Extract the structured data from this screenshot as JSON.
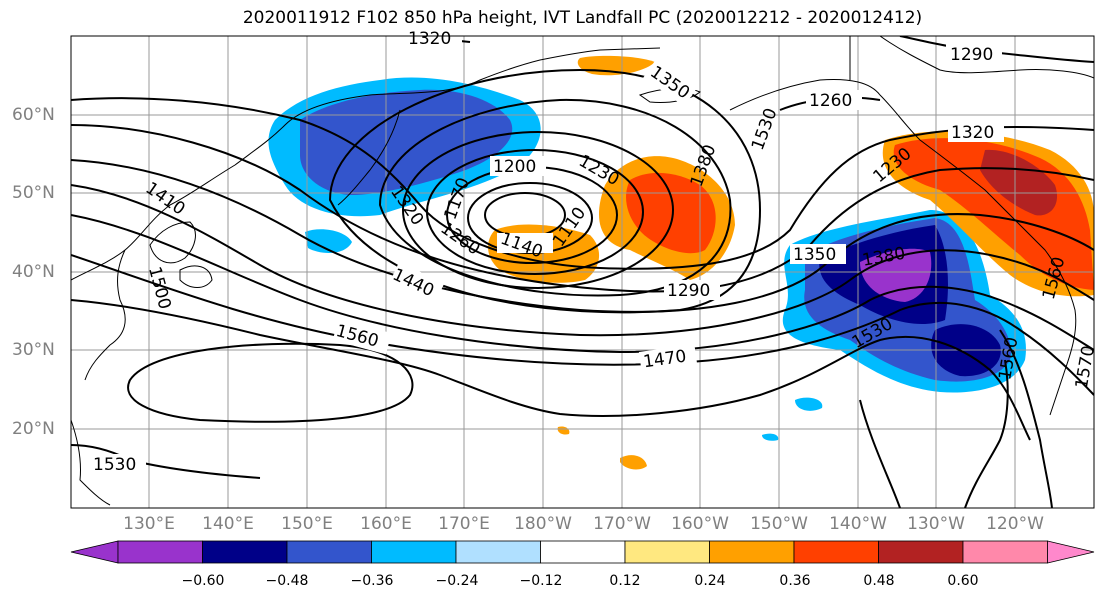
{
  "title": "2020011912 F102 850 hPa height, IVT Landfall PC (2020012212 - 2020012412)",
  "axes": {
    "lat_labels": [
      "20°N",
      "30°N",
      "40°N",
      "50°N",
      "60°N"
    ],
    "lon_labels": [
      "130°E",
      "140°E",
      "150°E",
      "160°E",
      "170°E",
      "180°W",
      "170°W",
      "160°W",
      "150°W",
      "140°W",
      "130°W",
      "120°W"
    ]
  },
  "contour_labels": [
    "1320",
    "1350",
    "1290",
    "1260",
    "1320",
    "1230",
    "1200",
    "1230",
    "1170",
    "1140",
    "1110",
    "1260",
    "1320",
    "1410",
    "1500",
    "1440",
    "1560",
    "1290",
    "1470",
    "1530",
    "1350",
    "1380",
    "1560",
    "1530",
    "1560",
    "1570",
    "1380",
    "1530"
  ],
  "colorbar": {
    "ticks": [
      "−0.60",
      "−0.48",
      "−0.36",
      "−0.24",
      "−0.12",
      "0.12",
      "0.24",
      "0.36",
      "0.48",
      "0.60"
    ],
    "colors": [
      "#9933cc",
      "#000088",
      "#3355cc",
      "#00bbff",
      "#b0e0ff",
      "#ffffff",
      "#ffe880",
      "#ffa000",
      "#ff4000",
      "#b22222",
      "#ff88aa",
      "#ff88cc"
    ]
  }
}
